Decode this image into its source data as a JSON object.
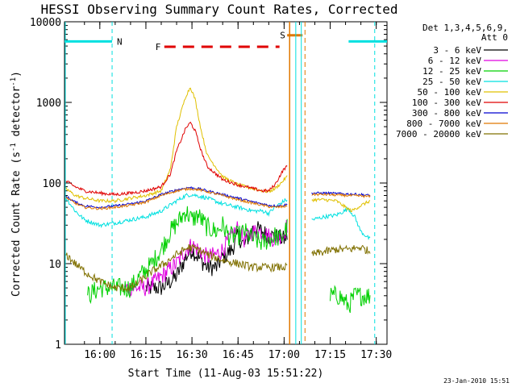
{
  "chart_data": {
    "type": "line",
    "title": "HESSI Observing Summary Count Rates, Corrected",
    "xlabel": "Start Time (11-Aug-03 15:51:22)",
    "ylabel": "Corrected Count Rate (s^-1 detector^-1)",
    "ylabel_main": "Corrected Count Rate (s",
    "ylabel_exp1": "-1",
    "ylabel_mid": " detector",
    "ylabel_exp2": "-1",
    "ylabel_end": ")",
    "y_scale": "log",
    "ylim": [
      1,
      10000
    ],
    "xlim_minutes": [
      -6.5,
      98.5
    ],
    "x_origin": "15:55",
    "x_ticks": [
      {
        "label": "16:00",
        "min": 5
      },
      {
        "label": "16:15",
        "min": 20
      },
      {
        "label": "16:30",
        "min": 35
      },
      {
        "label": "16:45",
        "min": 50
      },
      {
        "label": "17:00",
        "min": 65
      },
      {
        "label": "17:15",
        "min": 80
      },
      {
        "label": "17:30",
        "min": 95
      }
    ],
    "y_ticks": [
      {
        "label": "1",
        "value": 1
      },
      {
        "label": "10",
        "value": 10
      },
      {
        "label": "100",
        "value": 100
      },
      {
        "label": "1000",
        "value": 1000
      },
      {
        "label": "10000",
        "value": 10000
      }
    ],
    "legend_placement": "right",
    "legend_header": [
      "Det 1,3,4,5,6,9,",
      "Att 0"
    ],
    "datestamp": "23-Jan-2010 15:51",
    "annotations": {
      "night_label": "N",
      "flare_label": "F",
      "saa_label": "S"
    },
    "series": [
      {
        "name": "3 - 6 keV",
        "color": "#000000",
        "points": [
          [
            20,
            5
          ],
          [
            25,
            5
          ],
          [
            28,
            6
          ],
          [
            30,
            7
          ],
          [
            33,
            12
          ],
          [
            35,
            15
          ],
          [
            37,
            12
          ],
          [
            40,
            9
          ],
          [
            43,
            9
          ],
          [
            45,
            12
          ],
          [
            48,
            15
          ],
          [
            50,
            22
          ],
          [
            52,
            17
          ],
          [
            55,
            28
          ],
          [
            58,
            25
          ],
          [
            60,
            22
          ],
          [
            62,
            22
          ],
          [
            65,
            20
          ],
          [
            66,
            22
          ]
        ]
      },
      {
        "name": "6 - 12 keV",
        "color": "#e000e0",
        "points": [
          [
            13,
            5
          ],
          [
            18,
            5
          ],
          [
            20,
            5
          ],
          [
            23,
            6
          ],
          [
            27,
            8
          ],
          [
            30,
            10
          ],
          [
            33,
            15
          ],
          [
            35,
            17
          ],
          [
            37,
            15
          ],
          [
            40,
            12
          ],
          [
            43,
            13
          ],
          [
            45,
            15
          ],
          [
            47,
            20
          ],
          [
            50,
            28
          ],
          [
            52,
            20
          ],
          [
            55,
            25
          ],
          [
            58,
            25
          ],
          [
            60,
            22
          ],
          [
            62,
            20
          ],
          [
            65,
            24
          ],
          [
            66,
            30
          ]
        ]
      },
      {
        "name": "12 - 25 keV",
        "color": "#00d000",
        "points": [
          [
            1,
            4
          ],
          [
            5,
            5
          ],
          [
            10,
            5
          ],
          [
            15,
            5
          ],
          [
            18,
            7
          ],
          [
            22,
            10
          ],
          [
            25,
            15
          ],
          [
            28,
            25
          ],
          [
            31,
            35
          ],
          [
            33,
            45
          ],
          [
            35,
            35
          ],
          [
            37,
            40
          ],
          [
            40,
            28
          ],
          [
            43,
            25
          ],
          [
            45,
            30
          ],
          [
            47,
            22
          ],
          [
            50,
            22
          ],
          [
            52,
            25
          ],
          [
            55,
            20
          ],
          [
            58,
            18
          ],
          [
            60,
            20
          ],
          [
            62,
            22
          ],
          [
            64,
            20
          ],
          [
            65,
            25
          ],
          [
            66,
            28
          ]
        ]
      },
      {
        "name": "25 - 50 keV",
        "color": "#00e0e0",
        "points": [
          [
            -6,
            65
          ],
          [
            -3,
            45
          ],
          [
            0,
            35
          ],
          [
            5,
            30
          ],
          [
            10,
            32
          ],
          [
            15,
            35
          ],
          [
            20,
            38
          ],
          [
            25,
            45
          ],
          [
            30,
            60
          ],
          [
            33,
            70
          ],
          [
            35,
            72
          ],
          [
            40,
            65
          ],
          [
            45,
            55
          ],
          [
            50,
            50
          ],
          [
            55,
            45
          ],
          [
            58,
            45
          ],
          [
            60,
            42
          ],
          [
            62,
            50
          ],
          [
            65,
            60
          ],
          [
            66,
            62
          ]
        ]
      },
      {
        "name": "50 - 100 keV",
        "color": "#e0c000",
        "points": [
          [
            -6,
            85
          ],
          [
            -3,
            70
          ],
          [
            0,
            65
          ],
          [
            5,
            60
          ],
          [
            10,
            60
          ],
          [
            15,
            65
          ],
          [
            20,
            70
          ],
          [
            25,
            80
          ],
          [
            28,
            150
          ],
          [
            30,
            500
          ],
          [
            33,
            1200
          ],
          [
            34.5,
            1550
          ],
          [
            36,
            1100
          ],
          [
            38,
            450
          ],
          [
            40,
            220
          ],
          [
            45,
            120
          ],
          [
            50,
            95
          ],
          [
            55,
            85
          ],
          [
            58,
            80
          ],
          [
            60,
            78
          ],
          [
            62,
            85
          ],
          [
            64,
            100
          ],
          [
            65,
            110
          ],
          [
            66,
            120
          ]
        ]
      },
      {
        "name": "100 - 300 keV",
        "color": "#e00000",
        "points": [
          [
            -6,
            105
          ],
          [
            -3,
            90
          ],
          [
            0,
            80
          ],
          [
            5,
            75
          ],
          [
            10,
            72
          ],
          [
            15,
            75
          ],
          [
            20,
            80
          ],
          [
            25,
            90
          ],
          [
            28,
            130
          ],
          [
            30,
            250
          ],
          [
            33,
            480
          ],
          [
            34.5,
            560
          ],
          [
            36,
            450
          ],
          [
            38,
            250
          ],
          [
            40,
            160
          ],
          [
            45,
            110
          ],
          [
            50,
            95
          ],
          [
            55,
            85
          ],
          [
            58,
            80
          ],
          [
            60,
            80
          ],
          [
            62,
            95
          ],
          [
            64,
            130
          ],
          [
            65,
            150
          ],
          [
            66,
            160
          ]
        ]
      },
      {
        "name": "300 - 800 keV",
        "color": "#0000d0",
        "points": [
          [
            -6,
            68
          ],
          [
            -3,
            58
          ],
          [
            0,
            52
          ],
          [
            5,
            50
          ],
          [
            10,
            52
          ],
          [
            15,
            55
          ],
          [
            20,
            60
          ],
          [
            25,
            72
          ],
          [
            30,
            82
          ],
          [
            34,
            88
          ],
          [
            37,
            85
          ],
          [
            40,
            80
          ],
          [
            45,
            72
          ],
          [
            50,
            65
          ],
          [
            55,
            58
          ],
          [
            58,
            55
          ],
          [
            60,
            53
          ],
          [
            62,
            52
          ],
          [
            65,
            53
          ],
          [
            66,
            54
          ]
        ]
      },
      {
        "name": "800 - 7000 keV",
        "color": "#e07800",
        "points": [
          [
            -6,
            66
          ],
          [
            -3,
            56
          ],
          [
            0,
            50
          ],
          [
            5,
            48
          ],
          [
            10,
            50
          ],
          [
            15,
            53
          ],
          [
            20,
            58
          ],
          [
            25,
            70
          ],
          [
            30,
            80
          ],
          [
            34,
            85
          ],
          [
            37,
            83
          ],
          [
            40,
            78
          ],
          [
            45,
            70
          ],
          [
            50,
            62
          ],
          [
            55,
            56
          ],
          [
            58,
            53
          ],
          [
            60,
            51
          ],
          [
            62,
            50
          ],
          [
            65,
            51
          ],
          [
            66,
            52
          ]
        ]
      },
      {
        "name": "7000 - 20000 keV",
        "color": "#807000",
        "points": [
          [
            -6,
            13
          ],
          [
            -3,
            10
          ],
          [
            0,
            8
          ],
          [
            5,
            6
          ],
          [
            10,
            5
          ],
          [
            15,
            5
          ],
          [
            18,
            6
          ],
          [
            22,
            8
          ],
          [
            26,
            10
          ],
          [
            30,
            13
          ],
          [
            34,
            16
          ],
          [
            37,
            15
          ],
          [
            40,
            13
          ],
          [
            45,
            11
          ],
          [
            50,
            10
          ],
          [
            55,
            9
          ],
          [
            58,
            9
          ],
          [
            60,
            9
          ],
          [
            62,
            9
          ],
          [
            65,
            9
          ],
          [
            66,
            9
          ]
        ]
      }
    ],
    "segment2": {
      "x_range": [
        74,
        93
      ],
      "points": {
        "25 - 50 keV": [
          [
            74,
            35
          ],
          [
            78,
            38
          ],
          [
            82,
            40
          ],
          [
            86,
            48
          ],
          [
            88,
            38
          ],
          [
            90,
            25
          ],
          [
            93,
            20
          ]
        ],
        "50 - 100 keV": [
          [
            74,
            62
          ],
          [
            78,
            62
          ],
          [
            82,
            60
          ],
          [
            85,
            50
          ],
          [
            87,
            45
          ],
          [
            89,
            50
          ],
          [
            91,
            55
          ],
          [
            93,
            60
          ]
        ],
        "300 - 800 keV": [
          [
            74,
            75
          ],
          [
            78,
            75
          ],
          [
            82,
            74
          ],
          [
            86,
            73
          ],
          [
            90,
            72
          ],
          [
            93,
            70
          ]
        ],
        "800 - 7000 keV": [
          [
            74,
            72
          ],
          [
            78,
            72
          ],
          [
            82,
            71
          ],
          [
            86,
            70
          ],
          [
            90,
            69
          ],
          [
            93,
            68
          ]
        ],
        "7000 - 20000 keV": [
          [
            74,
            13
          ],
          [
            78,
            14
          ],
          [
            82,
            15
          ],
          [
            86,
            15
          ],
          [
            90,
            16
          ],
          [
            93,
            14
          ]
        ],
        "12 - 25 keV": [
          [
            80,
            4
          ],
          [
            83,
            4
          ],
          [
            86,
            3
          ],
          [
            88,
            4
          ],
          [
            90,
            4
          ],
          [
            93,
            4
          ]
        ]
      }
    }
  }
}
